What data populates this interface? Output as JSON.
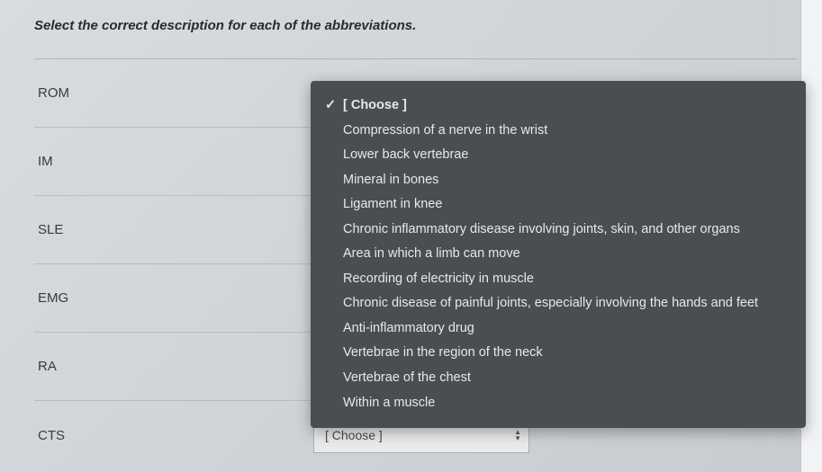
{
  "instruction": "Select the correct description for each of the abbreviations.",
  "rows": [
    {
      "abbrev": "ROM"
    },
    {
      "abbrev": "IM"
    },
    {
      "abbrev": "SLE"
    },
    {
      "abbrev": "EMG"
    },
    {
      "abbrev": "RA"
    },
    {
      "abbrev": "CTS"
    }
  ],
  "choose_placeholder": "[ Choose ]",
  "dropdown": {
    "selected_label": "[ Choose ]",
    "options": [
      "Compression of a nerve in the wrist",
      "Lower back vertebrae",
      "Mineral in bones",
      "Ligament in knee",
      "Chronic inflammatory disease involving joints, skin, and other organs",
      "Area in which a limb can move",
      "Recording of electricity in muscle",
      "Chronic disease of painful joints, especially involving the hands and feet",
      "Anti-inflammatory drug",
      "Vertebrae in the region of the neck",
      "Vertebrae of the chest",
      "Within a muscle"
    ]
  },
  "colors": {
    "dropdown_bg": "#4a4e52",
    "dropdown_text": "#e8e8e8",
    "page_bg_start": "#d8dce0",
    "page_bg_end": "#c8ccd0",
    "divider": "#b8bcc0",
    "select_border": "#a8acb0"
  }
}
